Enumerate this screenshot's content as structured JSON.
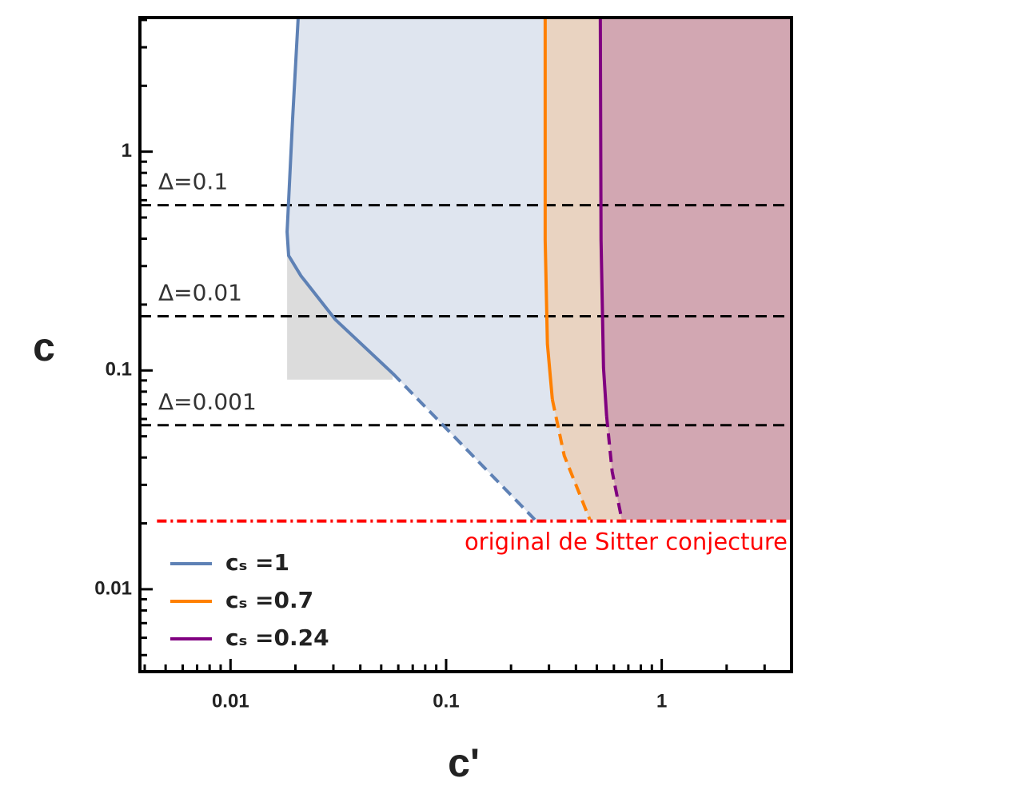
{
  "chart_data": {
    "type": "line",
    "x_label": "c'",
    "y_label": "c",
    "log_x": true,
    "log_y": true,
    "xlim": [
      0.0038,
      4.0
    ],
    "ylim": [
      0.0042,
      4.1
    ],
    "xticks": [
      0.01,
      0.1,
      1
    ],
    "yticks": [
      0.01,
      0.1,
      1
    ],
    "xminor_ticks": [
      0.004,
      0.005,
      0.006,
      0.007,
      0.008,
      0.009,
      0.02,
      0.03,
      0.04,
      0.05,
      0.06,
      0.07,
      0.08,
      0.09,
      0.2,
      0.3,
      0.4,
      0.5,
      0.6,
      0.7,
      0.8,
      0.9,
      2,
      3
    ],
    "yminor_ticks": [
      0.005,
      0.006,
      0.007,
      0.008,
      0.009,
      0.02,
      0.03,
      0.04,
      0.05,
      0.06,
      0.07,
      0.08,
      0.09,
      0.2,
      0.3,
      0.4,
      0.5,
      0.6,
      0.7,
      0.8,
      0.9,
      2,
      3,
      4
    ],
    "series": [
      {
        "name": "cₛ =1",
        "color": "#5e81b5",
        "fill": "#dfe5ef",
        "segments": [
          {
            "style": "solid",
            "x": [
              0.0206,
              0.0194,
              0.0183,
              0.0186,
              0.0212,
              0.0306,
              0.0565
            ],
            "values": [
              4.1,
              1.4,
              0.43,
              0.335,
              0.271,
              0.171,
              0.097
            ]
          },
          {
            "style": "dashed",
            "x": [
              0.0565,
              0.258
            ],
            "values": [
              0.097,
              0.0208
            ]
          }
        ]
      },
      {
        "name": "cₛ =0.7",
        "color": "#ff8000",
        "fill": "#e9d3c1",
        "segments": [
          {
            "style": "solid",
            "x": [
              0.288,
              0.288,
              0.295,
              0.311
            ],
            "values": [
              4.1,
              0.396,
              0.132,
              0.0736
            ]
          },
          {
            "style": "dashed",
            "x": [
              0.311,
              0.353,
              0.464
            ],
            "values": [
              0.0736,
              0.0408,
              0.0208
            ]
          }
        ]
      },
      {
        "name": "cₛ =0.24",
        "color": "#800080",
        "fill": "#d2a7b2",
        "segments": [
          {
            "style": "solid",
            "x": [
              0.519,
              0.523,
              0.537,
              0.555
            ],
            "values": [
              4.1,
              0.396,
              0.103,
              0.062
            ]
          },
          {
            "style": "dashed",
            "x": [
              0.555,
              0.589,
              0.653
            ],
            "values": [
              0.062,
              0.0345,
              0.0208
            ]
          }
        ]
      }
    ],
    "gray_region": {
      "color": "#dcdcdc",
      "x": [
        0.0183,
        0.0565
      ],
      "y": [
        0.0908,
        0.335
      ]
    },
    "reference_lines": [
      {
        "label": "Δ=0.1",
        "value": 0.569
      },
      {
        "label": "Δ=0.01",
        "value": 0.177
      },
      {
        "label": "Δ=0.001",
        "value": 0.0562
      }
    ],
    "conjecture_line": {
      "label": "original de Sitter conjecture",
      "value": 0.0205,
      "x_start": 0.00456,
      "color": "#ff0000"
    }
  }
}
